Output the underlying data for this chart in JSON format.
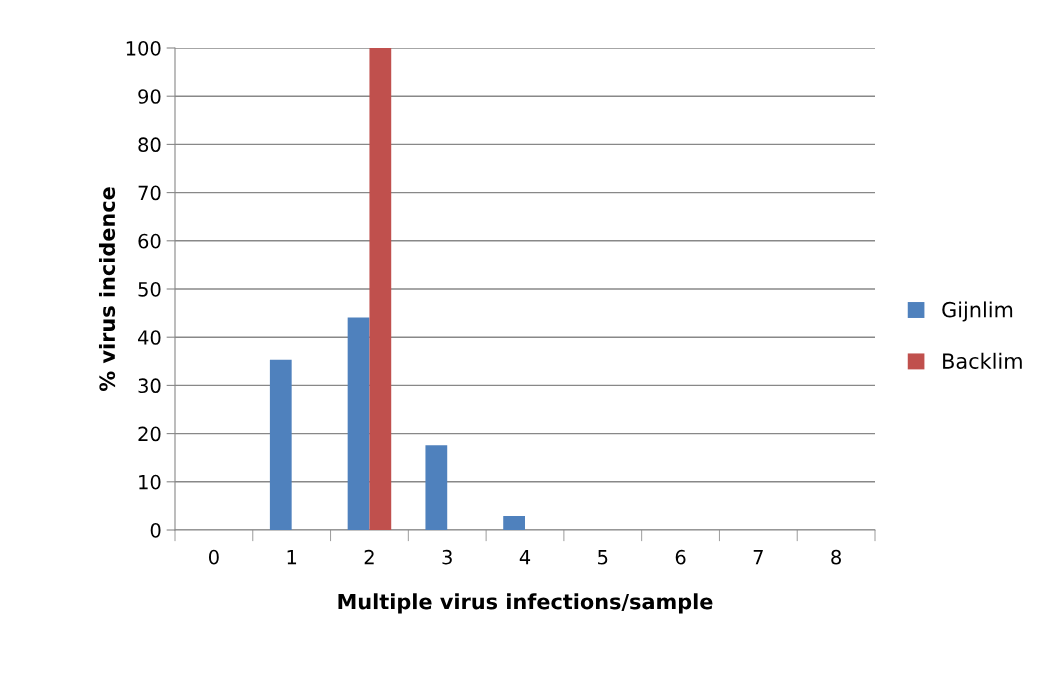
{
  "chart_data": {
    "type": "bar",
    "xlabel": "Multiple virus infections/sample",
    "ylabel": "% virus incidence",
    "categories": [
      "0",
      "1",
      "2",
      "3",
      "4",
      "5",
      "6",
      "7",
      "8"
    ],
    "series": [
      {
        "name": "Gijnlim",
        "color": "#4f81bd",
        "values": [
          0,
          35.3,
          44.1,
          17.6,
          2.9,
          0,
          0,
          0,
          0
        ]
      },
      {
        "name": "Backlim",
        "color": "#c0504d",
        "values": [
          0,
          0,
          100,
          0,
          0,
          0,
          0,
          0,
          0
        ]
      }
    ],
    "ylim": [
      0,
      100
    ],
    "yticks": [
      0,
      10,
      20,
      30,
      40,
      50,
      60,
      70,
      80,
      90,
      100
    ],
    "grid": "y",
    "legend": "right"
  }
}
